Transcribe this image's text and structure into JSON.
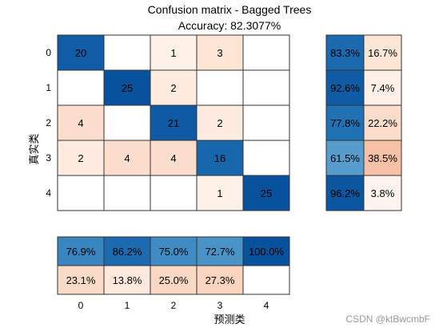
{
  "title": "Confusion matrix - Bagged Trees",
  "subtitle": "Accuracy: 82.3077%",
  "watermark": "CSDN @ktBwcmbF",
  "colors": {
    "grid": "#333333",
    "text_dark": "#000000",
    "text_light": "#ffffff"
  },
  "chart_data": {
    "type": "heatmap",
    "xlabel": "预测类",
    "ylabel": "真实类",
    "class_labels": [
      "0",
      "1",
      "2",
      "3",
      "4"
    ],
    "matrix": [
      [
        20,
        null,
        1,
        3,
        null
      ],
      [
        null,
        25,
        2,
        null,
        null
      ],
      [
        4,
        null,
        21,
        2,
        null
      ],
      [
        2,
        4,
        4,
        16,
        null
      ],
      [
        null,
        null,
        null,
        1,
        25
      ]
    ],
    "row_summary": [
      [
        "83.3%",
        "16.7%"
      ],
      [
        "92.6%",
        "7.4%"
      ],
      [
        "77.8%",
        "22.2%"
      ],
      [
        "61.5%",
        "38.5%"
      ],
      [
        "96.2%",
        "3.8%"
      ]
    ],
    "row_summary_values": [
      [
        83.3,
        16.7
      ],
      [
        92.6,
        7.4
      ],
      [
        77.8,
        22.2
      ],
      [
        61.5,
        38.5
      ],
      [
        96.2,
        3.8
      ]
    ],
    "column_summary": [
      [
        "76.9%",
        "86.2%",
        "75.0%",
        "72.7%",
        "100.0%"
      ],
      [
        "23.1%",
        "13.8%",
        "25.0%",
        "27.3%",
        null
      ]
    ],
    "column_summary_values": [
      [
        76.9,
        86.2,
        75.0,
        72.7,
        100.0
      ],
      [
        23.1,
        13.8,
        25.0,
        27.3,
        0
      ]
    ]
  }
}
